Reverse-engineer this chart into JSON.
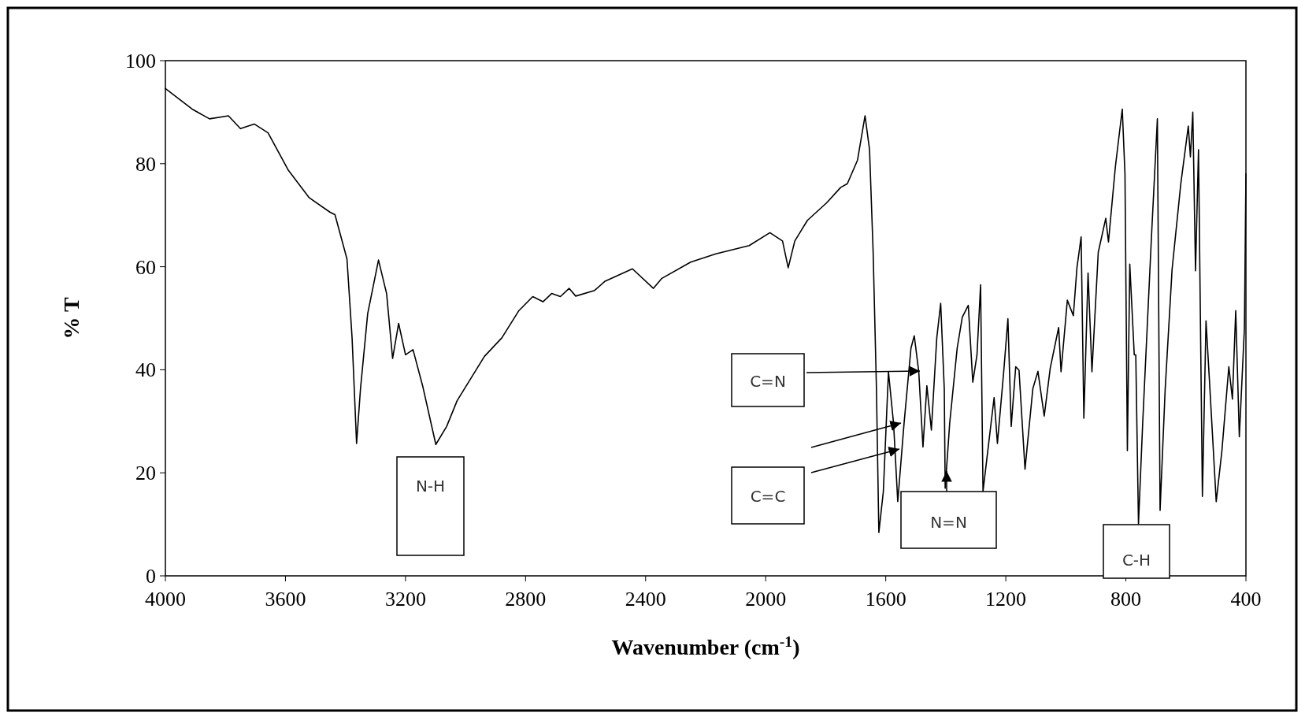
{
  "chart_data": {
    "type": "line",
    "xlabel": "Wavenumber (cm$^{-1}$)",
    "ylabel": "% T",
    "xlim": [
      4000,
      400
    ],
    "xticks": [
      4000,
      3600,
      3200,
      2800,
      2400,
      2000,
      1600,
      1200,
      800,
      400
    ],
    "ylim": [
      0,
      100
    ],
    "yticks": [
      0,
      20,
      40,
      60,
      80,
      100
    ],
    "grid": false,
    "marker": "none",
    "line_style": "solid",
    "annotations": [
      "N-H",
      "C=N",
      "C=C",
      "N=N",
      "C-H"
    ],
    "series": [
      {
        "color": "#000000",
        "x": [
          4000,
          3911,
          3853,
          3790,
          3750,
          3704,
          3658,
          3590,
          3521,
          3452,
          3435,
          3395,
          3378,
          3363,
          3350,
          3326,
          3290,
          3263,
          3243,
          3223,
          3200,
          3175,
          3143,
          3099,
          3063,
          3028,
          2937,
          2879,
          2822,
          2776,
          2742,
          2713,
          2684,
          2655,
          2633,
          2570,
          2535,
          2444,
          2374,
          2347,
          2250,
          2166,
          2055,
          1986,
          1944,
          1925,
          1903,
          1861,
          1797,
          1750,
          1728,
          1694,
          1669,
          1654,
          1642,
          1631,
          1623,
          1608,
          1591,
          1574,
          1560,
          1539,
          1516,
          1505,
          1490,
          1476,
          1463,
          1448,
          1430,
          1417,
          1405,
          1402,
          1387,
          1362,
          1345,
          1325,
          1310,
          1296,
          1284,
          1276,
          1264,
          1239,
          1228,
          1207,
          1193,
          1182,
          1167,
          1156,
          1136,
          1110,
          1093,
          1072,
          1052,
          1024,
          1016,
          995,
          975,
          963,
          949,
          940,
          926,
          913,
          892,
          867,
          858,
          835,
          812,
          803,
          795,
          787,
          772,
          767,
          758,
          744,
          715,
          695,
          686,
          669,
          646,
          617,
          592,
          585,
          577,
          568,
          558,
          545,
          533,
          520,
          499,
          480,
          457,
          445,
          434,
          422,
          405,
          400
        ],
        "values": [
          94.6,
          90.6,
          88.7,
          89.3,
          86.8,
          87.7,
          86.0,
          78.7,
          73.4,
          70.6,
          70.1,
          61.5,
          46.2,
          25.7,
          36.3,
          50.9,
          61.3,
          54.8,
          42.2,
          49.0,
          42.9,
          43.9,
          36.9,
          25.5,
          29.0,
          34.0,
          42.6,
          46.2,
          51.5,
          54.2,
          53.2,
          54.8,
          54.2,
          55.8,
          54.3,
          55.4,
          57.2,
          59.6,
          55.8,
          57.7,
          60.9,
          62.5,
          64.1,
          66.6,
          65.0,
          59.8,
          65.0,
          69.0,
          72.4,
          75.4,
          76.1,
          80.7,
          89.3,
          82.7,
          62.8,
          36.3,
          8.4,
          16.4,
          39.6,
          29.6,
          14.4,
          29.6,
          44.2,
          46.6,
          39.6,
          25.0,
          36.9,
          28.3,
          46.2,
          52.9,
          36.3,
          17.0,
          29.6,
          44.2,
          50.2,
          52.5,
          37.6,
          42.9,
          56.5,
          16.4,
          22.3,
          34.6,
          25.7,
          39.6,
          49.9,
          29.0,
          40.6,
          39.9,
          20.7,
          36.3,
          39.7,
          31.0,
          40.3,
          48.2,
          39.6,
          53.5,
          50.5,
          59.8,
          65.8,
          30.6,
          58.8,
          39.6,
          62.8,
          69.4,
          64.8,
          79.4,
          90.6,
          78.0,
          24.3,
          60.5,
          42.9,
          42.9,
          10.1,
          29.6,
          65.5,
          88.7,
          12.7,
          36.3,
          59.5,
          76.1,
          87.3,
          81.3,
          90.0,
          59.2,
          82.7,
          15.4,
          49.5,
          36.3,
          14.4,
          24.3,
          40.6,
          34.3,
          51.5,
          27.0,
          48.2,
          78.0
        ]
      }
    ]
  }
}
